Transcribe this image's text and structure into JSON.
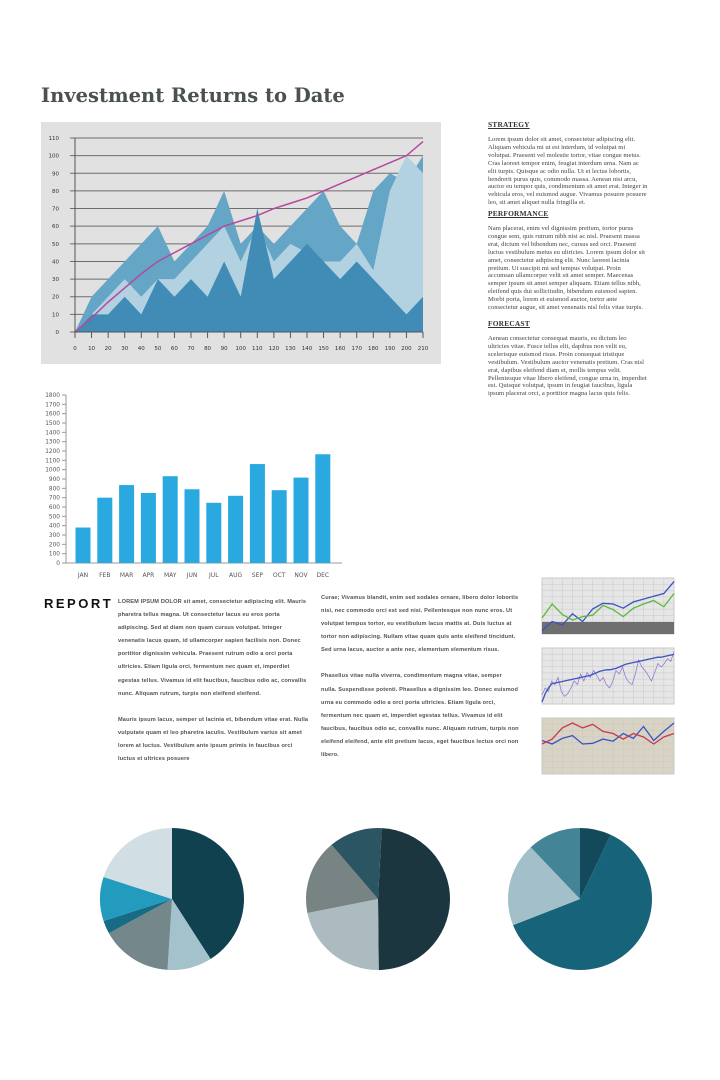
{
  "title": "Investment Returns to Date",
  "sidebar": {
    "sections": [
      {
        "heading": "STRATEGY",
        "text": "Lorem ipsum dolor sit amet, consectetur adipiscing elit. Aliquam vehicula mi ut est interdum, id volutpat mi volutpat. Praesent vel molestie tortor, vitae congue metus. Cras laoreet tempor enim, feugiat interdum urna. Nam ac elit turpis. Quisque ac odio nulla. Ut et lectus lobortis, hendrerit purus quis, commodo massa. Aenean nisi arcu, auctor eu tempor quis, condimentum sit amet erat. Integer in vehicula eros, vel euismod augue. Vivamus posuere posuere leo, sit amet aliquet nulla fringilla et."
      },
      {
        "heading": "PERFORMANCE",
        "text": "Nam placerat, enim vel dignissim pretium, tortor purus congue sem, quis rutrum nibh nisi ac nisl. Praesent massa erat, dictum vel bibendum nec, cursus sed orci. Praesent luctus vestibulum metus eu ultricies. Lorem ipsum dolor sit amet, consectetur adipiscing elit. Nunc laoreet lacinia pretium. Ut suscipit mi sed tempus volutpat. Proin accumsan ullamcorper velit sit amet semper. Maecenas semper ipsum sit amet semper aliquam. Etiam tellus nibh, eleifend quis dui sollicitudin, bibendum euismod sapien. Morbi porta, lorem et euismod auctor, tortor ante consectetur augue, sit amet venenatis nisl felis vitae turpis."
      },
      {
        "heading": "FORECAST",
        "text": "Aenean consectetur consequat mauris, eu dictum leo ultricies vitae. Fusce tellus elit, dapibus non velit eu, scelerisque euismod risus. Proin consequat tristique vestibulum. Vestibulum auctor venenatis pretium. Cras nisl erat, dapibus eleifend diam et, mollis tempus velit. Pellentesque vitae libero eleifend, congue urna in, imperdiet est. Quisque volutpat, ipsum in feugiat faucibus, ligula ipsum placerat orci, a porttitor magna lacus quis felis."
      }
    ]
  },
  "report": {
    "heading": "REPORT",
    "col1": [
      "LOREM IPSUM DOLOR sit amet, consectetur adipiscing elit. Mauris pharetra tellus magna. Ut consectetur lacus eu eros porta adipiscing. Sed at diam non quam cursus volutpat. Integer venenatis lacus quam, id ullamcorper sapien facilisis non. Donec porttitor dignissim vehicula. Praesent rutrum odio a orci porta ultricies. Etiam ligula orci, fermentum nec quam et, imperdiet egestas tellus. Vivamus id elit faucibus, faucibus odio ac, convallis nunc. Aliquam rutrum, turpis non eleifend eleifend.",
      "Mauris ipsum lacus, semper ut lacinia et, bibendum vitae erat. Nulla vulputate quam et leo pharetra iaculis. Vestibulum varius sit amet lorem at luctus. Vestibulum ante ipsum primis in faucibus orci luctus et ultrices posuere"
    ],
    "col2": [
      "Curae; Vivamus blandit, enim sed sodales ornare, libero dolor lobortis nisi, nec commodo orci est sed nisi. Pellentesque non nunc eros. Ut volutpat tempus tortor, eu vestibulum lacus mattis at. Duis luctus at tortor non adipiscing. Nullam vitae quam quis ante eleifend tincidunt. Sed urna lacus, auctor a ante nec, elementum elementum risus.",
      "Phasellus vitae nulla viverra, condimentum magna vitae, semper nulla. Suspendisse potenti. Phasellus a dignissim leo. Donec euismod urna eu commodo odio a orci porta ultricies. Etiam ligula orci, fermentum nec quam et, imperdiet egestas tellus. Vivamus id elit faucibus, faucibus odio ac, convallis nunc. Aliquam rutrum, turpis non eleifend eleifend, ante elit pretium lacus, eget faucibus lectus orci non libero."
    ]
  },
  "chart_data": [
    {
      "type": "area",
      "background": "#e1e1e1",
      "grid": "horizontal",
      "x": [
        0,
        10,
        20,
        30,
        40,
        50,
        60,
        70,
        80,
        90,
        100,
        110,
        120,
        130,
        140,
        150,
        160,
        170,
        180,
        190,
        200,
        210
      ],
      "xlim": [
        0,
        210
      ],
      "ylim": [
        0,
        110
      ],
      "yticks": [
        0,
        10,
        20,
        30,
        40,
        50,
        60,
        70,
        80,
        90,
        100,
        110
      ],
      "series": [
        {
          "type": "area",
          "color": "#65a5c6",
          "values": [
            0,
            20,
            30,
            40,
            50,
            60,
            40,
            50,
            60,
            80,
            50,
            60,
            50,
            60,
            70,
            80,
            60,
            50,
            80,
            90,
            85,
            100
          ]
        },
        {
          "type": "area",
          "color": "#b2d2e2",
          "values": [
            0,
            10,
            20,
            30,
            20,
            30,
            30,
            40,
            50,
            60,
            40,
            60,
            40,
            50,
            45,
            40,
            40,
            50,
            35,
            80,
            100,
            90
          ]
        },
        {
          "type": "area",
          "color": "#408cb6",
          "values": [
            0,
            10,
            10,
            20,
            10,
            30,
            20,
            30,
            20,
            40,
            20,
            70,
            30,
            40,
            50,
            40,
            30,
            40,
            30,
            20,
            10,
            20
          ]
        },
        {
          "type": "line",
          "color": "#b5489e",
          "values": [
            0,
            8,
            17,
            25,
            33,
            40,
            45,
            50,
            55,
            60,
            63,
            66,
            70,
            73,
            76,
            80,
            84,
            88,
            92,
            96,
            100,
            108
          ]
        }
      ]
    },
    {
      "type": "bar",
      "color": "#29a9e0",
      "categories": [
        "JAN",
        "FEB",
        "MAR",
        "APR",
        "MAY",
        "JUN",
        "JUL",
        "AUG",
        "SEP",
        "OCT",
        "NOV",
        "DEC"
      ],
      "values": [
        380,
        700,
        835,
        750,
        930,
        790,
        645,
        720,
        1060,
        780,
        915,
        1165
      ],
      "ylim": [
        0,
        1800
      ],
      "yticks": [
        0,
        100,
        200,
        300,
        400,
        500,
        600,
        700,
        800,
        900,
        1000,
        1100,
        1200,
        1300,
        1400,
        1500,
        1600,
        1700,
        1800
      ]
    },
    {
      "type": "line",
      "background": "#e6e6e6",
      "band_color": "#6f6f6f",
      "series": [
        {
          "color": "#3a53c2",
          "values": [
            2,
            15,
            10,
            26,
            15,
            33,
            41,
            40,
            34,
            43,
            47,
            51,
            55,
            72
          ]
        },
        {
          "color": "#5cb83a",
          "values": [
            20,
            40,
            25,
            17,
            22,
            24,
            38,
            32,
            22,
            34,
            40,
            45,
            36,
            55
          ]
        }
      ]
    },
    {
      "type": "line",
      "background": "#e6e6e6",
      "series": [
        {
          "color": "#8c6fd0",
          "values": [
            10,
            20,
            15,
            30,
            25,
            35,
            15,
            8,
            12,
            20,
            30,
            25,
            40,
            30,
            42,
            35,
            45,
            38,
            30,
            35,
            25,
            20,
            30,
            45,
            40,
            50,
            35,
            28,
            25,
            40,
            60,
            50,
            45,
            38,
            30,
            42,
            55,
            50,
            55,
            62,
            58,
            72
          ]
        },
        {
          "color": "#3a53c2",
          "values": [
            0,
            12,
            20,
            26,
            27,
            28,
            29,
            30,
            31,
            32,
            33,
            34,
            35,
            36,
            37,
            38,
            40,
            42,
            44,
            45,
            46,
            46,
            47,
            48,
            50,
            52,
            54,
            55,
            56,
            57,
            58,
            59,
            60,
            61,
            62,
            63,
            64,
            64,
            65,
            66,
            67,
            68
          ]
        }
      ]
    },
    {
      "type": "line",
      "background": "#d8d3c3",
      "series": [
        {
          "color": "#3a53c2",
          "values": [
            45,
            40,
            48,
            52,
            40,
            41,
            47,
            44,
            55,
            48,
            65,
            45,
            58,
            70
          ]
        },
        {
          "color": "#c83a4e",
          "values": [
            40,
            47,
            63,
            70,
            63,
            68,
            58,
            55,
            47,
            55,
            50,
            40,
            50,
            55
          ]
        }
      ]
    },
    {
      "type": "pie",
      "slices": [
        {
          "value": 41,
          "color": "#10414f"
        },
        {
          "value": 10,
          "color": "#a4c2cb"
        },
        {
          "value": 16,
          "color": "#74878b"
        },
        {
          "value": 3,
          "color": "#176b85"
        },
        {
          "value": 10,
          "color": "#239bbf"
        },
        {
          "value": 20,
          "color": "#d1dfe4"
        }
      ]
    },
    {
      "type": "pie",
      "start_angle_deg": 3,
      "slices": [
        {
          "value": 49,
          "color": "#1c3640"
        },
        {
          "value": 22,
          "color": "#abbbc0"
        },
        {
          "value": 17,
          "color": "#788384"
        },
        {
          "value": 12,
          "color": "#2b5563"
        }
      ]
    },
    {
      "type": "pie",
      "slices": [
        {
          "value": 7,
          "color": "#124a5c"
        },
        {
          "value": 62,
          "color": "#176379"
        },
        {
          "value": 19,
          "color": "#a3bfc9"
        },
        {
          "value": 12,
          "color": "#448497"
        }
      ]
    }
  ]
}
